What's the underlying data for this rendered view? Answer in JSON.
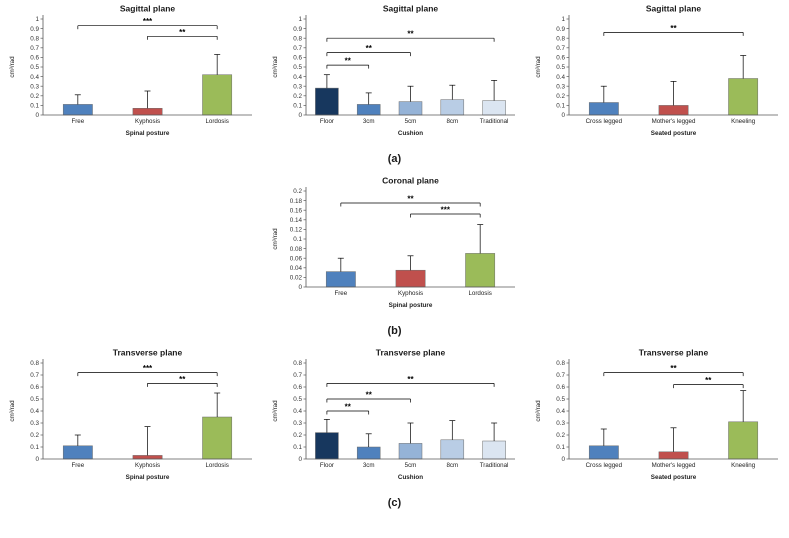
{
  "figure": {
    "row_labels": [
      "(a)",
      "(b)",
      "(c)"
    ],
    "colors": {
      "posture_series": [
        "#4F81BD",
        "#C0504D",
        "#9BBB59"
      ],
      "cushion_series": [
        "#17375E",
        "#4F81BD",
        "#95B3D7",
        "#B9CDE5",
        "#DBE5F1"
      ],
      "error_bar": "#000000",
      "axis": "#595959"
    }
  },
  "chart_data": [
    {
      "type": "bar",
      "title": "Sagittal plane",
      "ylabel": "cm³/rad",
      "xlabel": "Spinal posture",
      "categories": [
        "Free",
        "Kyphosis",
        "Lordosis"
      ],
      "values": [
        0.11,
        0.07,
        0.42
      ],
      "errors": [
        0.1,
        0.18,
        0.21
      ],
      "bar_colors": [
        "#4F81BD",
        "#C0504D",
        "#9BBB59"
      ],
      "ylim": [
        0,
        1
      ],
      "ytick_step": 0.1,
      "grid": false,
      "legend": "none",
      "significance": [
        {
          "from": 0,
          "to": 2,
          "label": "***",
          "y": 0.93
        },
        {
          "from": 1,
          "to": 2,
          "label": "**",
          "y": 0.82
        }
      ]
    },
    {
      "type": "bar",
      "title": "Sagittal plane",
      "ylabel": "cm³/rad",
      "xlabel": "Cushion",
      "categories": [
        "Floor",
        "3cm",
        "5cm",
        "8cm",
        "Traditional"
      ],
      "values": [
        0.28,
        0.11,
        0.14,
        0.16,
        0.15
      ],
      "errors": [
        0.14,
        0.12,
        0.16,
        0.15,
        0.21
      ],
      "bar_colors": [
        "#17375E",
        "#4F81BD",
        "#95B3D7",
        "#B9CDE5",
        "#DBE5F1"
      ],
      "ylim": [
        0,
        1
      ],
      "ytick_step": 0.1,
      "grid": false,
      "legend": "none",
      "significance": [
        {
          "from": 0,
          "to": 1,
          "label": "**",
          "y": 0.52
        },
        {
          "from": 0,
          "to": 2,
          "label": "**",
          "y": 0.65
        },
        {
          "from": 0,
          "to": 4,
          "label": "**",
          "y": 0.8
        }
      ]
    },
    {
      "type": "bar",
      "title": "Sagittal plane",
      "ylabel": "cm³/rad",
      "xlabel": "Seated posture",
      "categories": [
        "Cross legged",
        "Mother's legged",
        "Kneeling"
      ],
      "values": [
        0.13,
        0.1,
        0.38
      ],
      "errors": [
        0.17,
        0.25,
        0.24
      ],
      "bar_colors": [
        "#4F81BD",
        "#C0504D",
        "#9BBB59"
      ],
      "ylim": [
        0,
        1
      ],
      "ytick_step": 0.1,
      "grid": false,
      "legend": "none",
      "significance": [
        {
          "from": 0,
          "to": 2,
          "label": "**",
          "y": 0.86
        }
      ]
    },
    {
      "type": "bar",
      "title": "Coronal plane",
      "ylabel": "cm³/rad",
      "xlabel": "Spinal posture",
      "categories": [
        "Free",
        "Kyphosis",
        "Lordosis"
      ],
      "values": [
        0.032,
        0.035,
        0.07
      ],
      "errors": [
        0.028,
        0.03,
        0.06
      ],
      "bar_colors": [
        "#4F81BD",
        "#C0504D",
        "#9BBB59"
      ],
      "ylim": [
        0,
        0.2
      ],
      "ytick_step": 0.02,
      "grid": false,
      "legend": "none",
      "significance": [
        {
          "from": 0,
          "to": 2,
          "label": "**",
          "y": 0.175
        },
        {
          "from": 1,
          "to": 2,
          "label": "***",
          "y": 0.152
        }
      ]
    },
    {
      "type": "bar",
      "title": "Transverse plane",
      "ylabel": "cm³/rad",
      "xlabel": "Spinal posture",
      "categories": [
        "Free",
        "Kyphosis",
        "Lordosis"
      ],
      "values": [
        0.11,
        0.03,
        0.35
      ],
      "errors": [
        0.09,
        0.24,
        0.2
      ],
      "bar_colors": [
        "#4F81BD",
        "#C0504D",
        "#9BBB59"
      ],
      "ylim": [
        0,
        0.8
      ],
      "ytick_step": 0.1,
      "grid": false,
      "legend": "none",
      "significance": [
        {
          "from": 0,
          "to": 2,
          "label": "***",
          "y": 0.72
        },
        {
          "from": 1,
          "to": 2,
          "label": "**",
          "y": 0.63
        }
      ]
    },
    {
      "type": "bar",
      "title": "Transverse plane",
      "ylabel": "cm³/rad",
      "xlabel": "Cushion",
      "categories": [
        "Floor",
        "3cm",
        "5cm",
        "8cm",
        "Traditional"
      ],
      "values": [
        0.22,
        0.1,
        0.13,
        0.16,
        0.15
      ],
      "errors": [
        0.11,
        0.11,
        0.17,
        0.16,
        0.15
      ],
      "bar_colors": [
        "#17375E",
        "#4F81BD",
        "#95B3D7",
        "#B9CDE5",
        "#DBE5F1"
      ],
      "ylim": [
        0,
        0.8
      ],
      "ytick_step": 0.1,
      "grid": false,
      "legend": "none",
      "significance": [
        {
          "from": 0,
          "to": 1,
          "label": "**",
          "y": 0.4
        },
        {
          "from": 0,
          "to": 2,
          "label": "**",
          "y": 0.5
        },
        {
          "from": 0,
          "to": 4,
          "label": "**",
          "y": 0.63
        }
      ]
    },
    {
      "type": "bar",
      "title": "Transverse plane",
      "ylabel": "cm³/rad",
      "xlabel": "Seated posture",
      "categories": [
        "Cross legged",
        "Mother's legged",
        "Kneeling"
      ],
      "values": [
        0.11,
        0.06,
        0.31
      ],
      "errors": [
        0.14,
        0.2,
        0.26
      ],
      "bar_colors": [
        "#4F81BD",
        "#C0504D",
        "#9BBB59"
      ],
      "ylim": [
        0,
        0.8
      ],
      "ytick_step": 0.1,
      "grid": false,
      "legend": "none",
      "significance": [
        {
          "from": 0,
          "to": 2,
          "label": "**",
          "y": 0.72
        },
        {
          "from": 1,
          "to": 2,
          "label": "**",
          "y": 0.62
        }
      ]
    }
  ]
}
